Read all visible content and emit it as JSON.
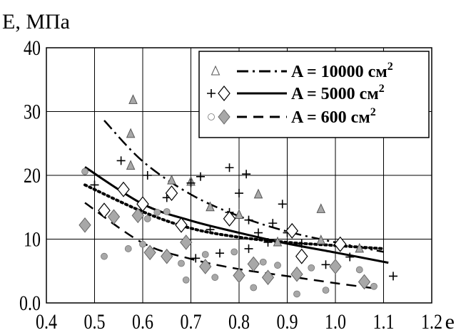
{
  "chart_data": {
    "type": "scatter",
    "title": "",
    "ylabel": "E, МПа",
    "xlabel": "e",
    "xlim": [
      0.4,
      1.2
    ],
    "ylim": [
      0,
      40
    ],
    "xticks": [
      "0.4",
      "0.5",
      "0.6",
      "0.7",
      "0.8",
      "0.9",
      "1.0",
      "1.1",
      "1.2"
    ],
    "yticks": [
      "0.0",
      "10",
      "20",
      "30",
      "40"
    ],
    "grid": true,
    "legend_position": "top-right",
    "legend": [
      {
        "label_main": "A = 10000 см",
        "label_sup": "2"
      },
      {
        "label_main": "A = 5000 см",
        "label_sup": "2"
      },
      {
        "label_main": "A = 600 см",
        "label_sup": "2"
      }
    ],
    "series": [
      {
        "marker": "triangle",
        "color": "#a8a8a8",
        "points": [
          [
            0.58,
            31.8
          ],
          [
            0.575,
            26.5
          ],
          [
            0.575,
            21.5
          ],
          [
            0.66,
            19.2
          ],
          [
            0.7,
            19.0
          ],
          [
            0.74,
            15.0
          ],
          [
            0.8,
            13.8
          ],
          [
            0.84,
            17.0
          ],
          [
            0.88,
            9.5
          ],
          [
            0.97,
            14.7
          ],
          [
            0.97,
            9.8
          ],
          [
            1.05,
            8.5
          ]
        ]
      },
      {
        "marker": "plus",
        "color": "#000000",
        "points": [
          [
            0.5,
            18.5
          ],
          [
            0.555,
            22.3
          ],
          [
            0.61,
            20.0
          ],
          [
            0.65,
            16.5
          ],
          [
            0.7,
            18.8
          ],
          [
            0.72,
            19.8
          ],
          [
            0.71,
            7.0
          ],
          [
            0.74,
            11.5
          ],
          [
            0.76,
            7.8
          ],
          [
            0.78,
            21.2
          ],
          [
            0.78,
            14.2
          ],
          [
            0.8,
            17.2
          ],
          [
            0.815,
            20.2
          ],
          [
            0.82,
            13.0
          ],
          [
            0.82,
            8.5
          ],
          [
            0.84,
            11.0
          ],
          [
            0.86,
            9.5
          ],
          [
            0.87,
            12.5
          ],
          [
            0.89,
            15.5
          ],
          [
            0.9,
            11.0
          ],
          [
            0.93,
            9.3
          ],
          [
            0.98,
            6.0
          ],
          [
            1.03,
            7.2
          ],
          [
            1.12,
            4.2
          ]
        ]
      },
      {
        "marker": "diamond-open",
        "color": "#000000",
        "points": [
          [
            0.52,
            14.5
          ],
          [
            0.56,
            17.8
          ],
          [
            0.6,
            15.5
          ],
          [
            0.66,
            17.2
          ],
          [
            0.68,
            12.2
          ],
          [
            0.78,
            13.2
          ],
          [
            0.91,
            11.3
          ],
          [
            0.93,
            7.3
          ],
          [
            1.01,
            9.2
          ]
        ]
      },
      {
        "marker": "circle",
        "color": "#a8a8a8",
        "points": [
          [
            0.48,
            20.6
          ],
          [
            0.52,
            7.3
          ],
          [
            0.57,
            8.5
          ],
          [
            0.6,
            9.2
          ],
          [
            0.61,
            13.2
          ],
          [
            0.63,
            14.2
          ],
          [
            0.65,
            14.3
          ],
          [
            0.68,
            6.2
          ],
          [
            0.69,
            3.6
          ],
          [
            0.73,
            7.6
          ],
          [
            0.75,
            4.0
          ],
          [
            0.79,
            8.0
          ],
          [
            0.83,
            2.4
          ],
          [
            0.85,
            6.4
          ],
          [
            0.88,
            5.9
          ],
          [
            0.92,
            1.4
          ],
          [
            0.95,
            5.5
          ],
          [
            0.98,
            2.0
          ],
          [
            1.05,
            5.2
          ],
          [
            1.08,
            2.6
          ]
        ]
      },
      {
        "marker": "diamond-filled",
        "color": "#a8a8a8",
        "points": [
          [
            0.48,
            12.2
          ],
          [
            0.54,
            13.5
          ],
          [
            0.59,
            13.7
          ],
          [
            0.615,
            7.9
          ],
          [
            0.65,
            7.3
          ],
          [
            0.69,
            9.5
          ],
          [
            0.73,
            5.7
          ],
          [
            0.8,
            4.3
          ],
          [
            0.83,
            6.1
          ],
          [
            0.86,
            4.0
          ],
          [
            0.92,
            4.5
          ],
          [
            1.0,
            5.7
          ],
          [
            1.06,
            3.3
          ]
        ]
      }
    ],
    "curves": [
      {
        "style": "dashdot",
        "legend_index": 0,
        "width": 2.5,
        "x": [
          0.52,
          0.6,
          0.7,
          0.8,
          0.9,
          1.0,
          1.1
        ],
        "y": [
          28.6,
          22.2,
          17.0,
          13.6,
          11.2,
          9.5,
          8.0
        ]
      },
      {
        "style": "solid",
        "legend_index": 1,
        "width": 3,
        "x": [
          0.48,
          0.6,
          0.7,
          0.8,
          0.9,
          1.0,
          1.11
        ],
        "y": [
          21.3,
          15.5,
          12.9,
          11.0,
          9.3,
          7.9,
          6.3
        ]
      },
      {
        "style": "dashed",
        "legend_index": 2,
        "width": 2.5,
        "x": [
          0.48,
          0.6,
          0.7,
          0.8,
          0.9,
          1.0,
          1.08
        ],
        "y": [
          15.7,
          9.4,
          6.9,
          5.3,
          4.2,
          3.1,
          2.3
        ]
      },
      {
        "style": "dotted",
        "width": 4,
        "x": [
          0.48,
          0.6,
          0.7,
          0.8,
          0.9,
          1.0,
          1.1
        ],
        "y": [
          18.5,
          14.3,
          11.7,
          10.3,
          9.5,
          9.0,
          8.5
        ]
      }
    ]
  }
}
